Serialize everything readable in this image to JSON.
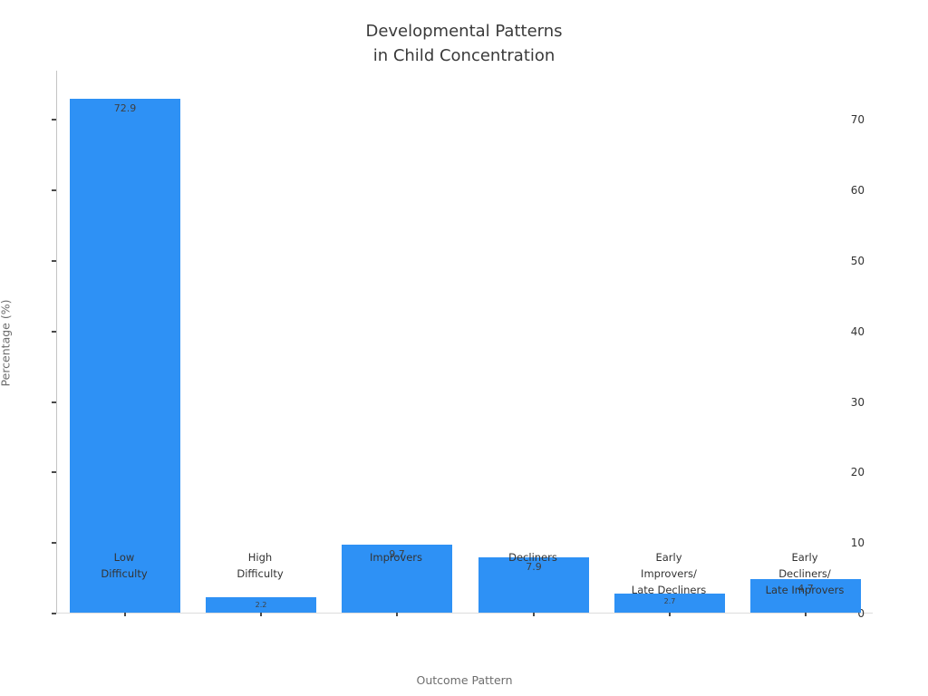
{
  "chart_data": {
    "type": "bar",
    "title": "Developmental Patterns\nin Child Concentration",
    "xlabel": "Outcome Pattern",
    "ylabel": "Percentage (%)",
    "categories": [
      "Low\nDifficulty",
      "High\nDifficulty",
      "Improvers",
      "Decliners",
      "Early\nImprovers/\nLate Decliners",
      "Early\nDecliners/\nLate Improvers"
    ],
    "values": [
      72.9,
      2.2,
      9.7,
      7.9,
      2.7,
      4.7
    ],
    "value_labels": [
      "72.9",
      "2.2",
      "9.7",
      "7.9",
      "2.7",
      "4.7"
    ],
    "yticks": [
      0,
      10,
      20,
      30,
      40,
      50,
      60,
      70
    ],
    "ylim": [
      0,
      77
    ],
    "grid": false,
    "legend_position": "none",
    "bar_color": "#2e91f5"
  },
  "colors": {
    "background": "#ffffff",
    "bar": "#2e91f5",
    "title_text": "#3a3a3a",
    "tick_text": "#333333",
    "axis_title_text": "#6e6e6e",
    "value_label_text": "#3f3f3f",
    "left_spine": "#c4c4c4",
    "bottom_spine": "#dcdcdc",
    "tick_mark": "#4a4a4a"
  }
}
